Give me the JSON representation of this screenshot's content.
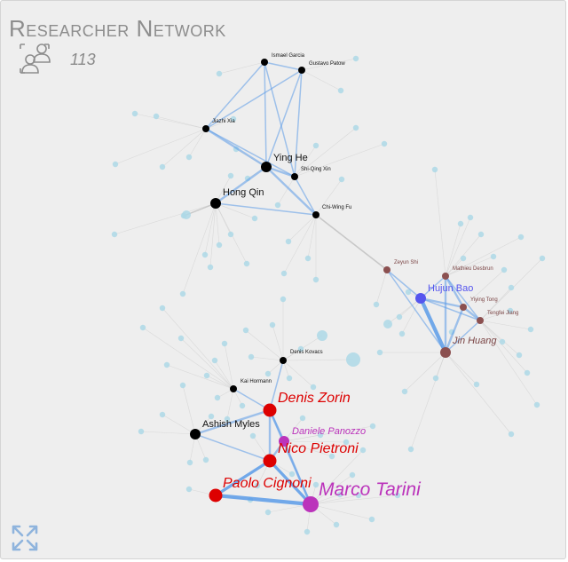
{
  "widget": {
    "title": "Researcher Network",
    "researcher_count": "113",
    "icons": {
      "researchers": "researchers-icon",
      "expand": "expand-icon"
    }
  },
  "colors": {
    "background": "#eeeeee",
    "default_node": "#000000",
    "minor_node": "#add8e6",
    "group_red": "#dd0000",
    "group_magenta": "#bb33bb",
    "group_blue": "#5555ee",
    "group_brown": "#8b5050",
    "strong_edge": "#5b9be8",
    "weak_edge": "#c8c8c8"
  },
  "graph": {
    "named_nodes": [
      {
        "id": "ismael",
        "label": "Ismael Garcia",
        "group": "default",
        "size": "small"
      },
      {
        "id": "gustavo",
        "label": "Gustavo Patow",
        "group": "default",
        "size": "small"
      },
      {
        "id": "jiazhi",
        "label": "Jiazhi Xia",
        "group": "default",
        "size": "small"
      },
      {
        "id": "yinghe",
        "label": "Ying He",
        "group": "default",
        "size": "medium"
      },
      {
        "id": "shiqing",
        "label": "Shi-Qing Xin",
        "group": "default",
        "size": "small"
      },
      {
        "id": "hongqin",
        "label": "Hong Qin",
        "group": "default",
        "size": "medium"
      },
      {
        "id": "chiwing",
        "label": "Chi-Wing Fu",
        "group": "default",
        "size": "small"
      },
      {
        "id": "zeyun",
        "label": "Zeyun Shi",
        "group": "brown",
        "size": "small"
      },
      {
        "id": "mathieu",
        "label": "Mathieu Desbrun",
        "group": "brown",
        "size": "small"
      },
      {
        "id": "hujun",
        "label": "Hujun Bao",
        "group": "blue",
        "size": "medium"
      },
      {
        "id": "yiying",
        "label": "Yiying Tong",
        "group": "brown",
        "size": "small"
      },
      {
        "id": "tengfei",
        "label": "Tengfei Jiang",
        "group": "brown",
        "size": "small"
      },
      {
        "id": "jinhuang",
        "label": "Jin Huang",
        "group": "brown",
        "size": "medium"
      },
      {
        "id": "deniskovacs",
        "label": "Denis Kovacs",
        "group": "default",
        "size": "small"
      },
      {
        "id": "kai",
        "label": "Kai Hormann",
        "group": "default",
        "size": "small"
      },
      {
        "id": "deniszorin",
        "label": "Denis Zorin",
        "group": "red",
        "size": "large"
      },
      {
        "id": "ashish",
        "label": "Ashish Myles",
        "group": "default",
        "size": "medium"
      },
      {
        "id": "daniele",
        "label": "Daniele Panozzo",
        "group": "magenta",
        "size": "medium"
      },
      {
        "id": "nico",
        "label": "Nico Pietroni",
        "group": "red",
        "size": "large"
      },
      {
        "id": "paolo",
        "label": "Paolo Cignoni",
        "group": "red",
        "size": "large"
      },
      {
        "id": "marco",
        "label": "Marco Tarini",
        "group": "magenta",
        "size": "xlarge"
      }
    ],
    "edges": [
      {
        "source": "ismael",
        "target": "gustavo",
        "weight": 1
      },
      {
        "source": "ismael",
        "target": "jiazhi",
        "weight": 1
      },
      {
        "source": "ismael",
        "target": "yinghe",
        "weight": 1
      },
      {
        "source": "ismael",
        "target": "shiqing",
        "weight": 1
      },
      {
        "source": "gustavo",
        "target": "jiazhi",
        "weight": 1
      },
      {
        "source": "gustavo",
        "target": "yinghe",
        "weight": 1
      },
      {
        "source": "gustavo",
        "target": "shiqing",
        "weight": 1
      },
      {
        "source": "jiazhi",
        "target": "yinghe",
        "weight": 2
      },
      {
        "source": "jiazhi",
        "target": "shiqing",
        "weight": 1
      },
      {
        "source": "yinghe",
        "target": "shiqing",
        "weight": 2
      },
      {
        "source": "yinghe",
        "target": "hongqin",
        "weight": 2
      },
      {
        "source": "yinghe",
        "target": "chiwing",
        "weight": 2
      },
      {
        "source": "shiqing",
        "target": "chiwing",
        "weight": 1
      },
      {
        "source": "hongqin",
        "target": "chiwing",
        "weight": 1
      },
      {
        "source": "zeyun",
        "target": "hujun",
        "weight": 1
      },
      {
        "source": "zeyun",
        "target": "jinhuang",
        "weight": 1
      },
      {
        "source": "mathieu",
        "target": "hujun",
        "weight": 1
      },
      {
        "source": "mathieu",
        "target": "yiying",
        "weight": 2
      },
      {
        "source": "mathieu",
        "target": "tengfei",
        "weight": 1
      },
      {
        "source": "mathieu",
        "target": "jinhuang",
        "weight": 2
      },
      {
        "source": "hujun",
        "target": "yiying",
        "weight": 2
      },
      {
        "source": "hujun",
        "target": "tengfei",
        "weight": 1
      },
      {
        "source": "hujun",
        "target": "jinhuang",
        "weight": 4
      },
      {
        "source": "yiying",
        "target": "tengfei",
        "weight": 2
      },
      {
        "source": "yiying",
        "target": "jinhuang",
        "weight": 2
      },
      {
        "source": "tengfei",
        "target": "jinhuang",
        "weight": 1
      },
      {
        "source": "deniskovacs",
        "target": "deniszorin",
        "weight": 1
      },
      {
        "source": "kai",
        "target": "deniszorin",
        "weight": 1
      },
      {
        "source": "deniszorin",
        "target": "ashish",
        "weight": 2
      },
      {
        "source": "deniszorin",
        "target": "daniele",
        "weight": 2
      },
      {
        "source": "deniszorin",
        "target": "nico",
        "weight": 2
      },
      {
        "source": "deniszorin",
        "target": "marco",
        "weight": 2
      },
      {
        "source": "ashish",
        "target": "nico",
        "weight": 1
      },
      {
        "source": "daniele",
        "target": "nico",
        "weight": 2
      },
      {
        "source": "daniele",
        "target": "marco",
        "weight": 2
      },
      {
        "source": "nico",
        "target": "paolo",
        "weight": 3
      },
      {
        "source": "nico",
        "target": "marco",
        "weight": 3
      },
      {
        "source": "paolo",
        "target": "marco",
        "weight": 4
      }
    ]
  }
}
